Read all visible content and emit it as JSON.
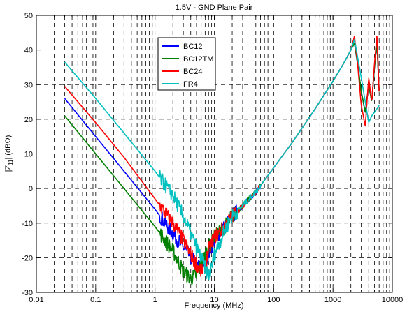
{
  "chart_data": {
    "type": "line",
    "title": "1.5V - GND Plane Pair",
    "xlabel": "Frequency (MHz)",
    "ylabel_parts": [
      "|Z",
      "11",
      "| (dBΩ)"
    ],
    "xscale": "log",
    "xlim": [
      0.01,
      10000
    ],
    "ylim": [
      -30,
      50
    ],
    "x_tick_labels": [
      "0.01",
      "0.1",
      "1",
      "10",
      "100",
      "1000",
      "10000"
    ],
    "x_tick_values": [
      0.01,
      0.1,
      1,
      10,
      100,
      1000,
      10000
    ],
    "y_tick_values": [
      -30,
      -20,
      -10,
      0,
      10,
      20,
      30,
      40,
      50
    ],
    "y_tick_labels": [
      "-30",
      "-20",
      "-10",
      "0",
      "10",
      "20",
      "30",
      "40",
      "50"
    ],
    "grid": true,
    "legend_position": "top-center",
    "series": [
      {
        "name": "BC12",
        "color": "#0000ff",
        "x": [
          0.03,
          0.1,
          0.3,
          1,
          2,
          3,
          4,
          5,
          6,
          7,
          8,
          10,
          15,
          20,
          30,
          50,
          100,
          200,
          500,
          1000,
          1500,
          2000,
          2300,
          2600,
          3000,
          3500,
          4000,
          4500,
          5000,
          5500,
          6000
        ],
        "y": [
          26,
          15,
          5,
          -6,
          -13,
          -17,
          -20,
          -22,
          -23,
          -21,
          -19,
          -15,
          -11,
          -8,
          -5,
          -1,
          6,
          13,
          23,
          31,
          36,
          40,
          42,
          36,
          28,
          22,
          30,
          25,
          35,
          42,
          28
        ]
      },
      {
        "name": "BC12TM",
        "color": "#008000",
        "x": [
          0.03,
          0.1,
          0.3,
          1,
          2,
          3,
          4,
          5,
          6,
          7,
          8,
          10,
          15,
          20,
          30,
          50,
          100,
          200,
          500,
          1000,
          1500,
          2000,
          2300,
          2600,
          3000,
          3500,
          4000,
          4500,
          5000,
          5500,
          6000
        ],
        "y": [
          21,
          10,
          0,
          -11,
          -18,
          -24,
          -26,
          -25,
          -22,
          -19,
          -17,
          -14,
          -11,
          -8,
          -5,
          -1,
          6,
          13,
          23,
          31,
          36,
          40,
          42,
          36,
          28,
          22,
          30,
          25,
          35,
          42,
          28
        ]
      },
      {
        "name": "BC24",
        "color": "#ff0000",
        "x": [
          0.03,
          0.1,
          0.3,
          1,
          2,
          3,
          4,
          5,
          6,
          7,
          8,
          10,
          15,
          20,
          30,
          50,
          100,
          200,
          500,
          1000,
          1500,
          2000,
          2300,
          2600,
          3000,
          3500,
          4000,
          4500,
          5000,
          5500,
          6000
        ],
        "y": [
          29.5,
          19,
          9,
          -3,
          -10,
          -15,
          -19,
          -22,
          -24,
          -22,
          -18,
          -14,
          -11,
          -8,
          -5,
          -1,
          6,
          13,
          23,
          31,
          36,
          40,
          44,
          36,
          24,
          18,
          32,
          25,
          36,
          44,
          28
        ]
      },
      {
        "name": "FR4",
        "color": "#00c0c0",
        "x": [
          0.03,
          0.1,
          0.3,
          1,
          2,
          3,
          4,
          5,
          6,
          7,
          8,
          9,
          10,
          15,
          20,
          30,
          50,
          100,
          200,
          500,
          1000,
          1500,
          2000,
          2300,
          2600,
          3000,
          3500,
          4000,
          4500,
          5000,
          5500,
          6000
        ],
        "y": [
          36.5,
          26,
          16,
          5,
          -2,
          -8,
          -13,
          -17,
          -20,
          -23,
          -25,
          -23,
          -19,
          -12,
          -8,
          -5,
          -1,
          6,
          13,
          23,
          31,
          36,
          40,
          43,
          38,
          32,
          25,
          19,
          21,
          22,
          23,
          24
        ]
      }
    ]
  }
}
